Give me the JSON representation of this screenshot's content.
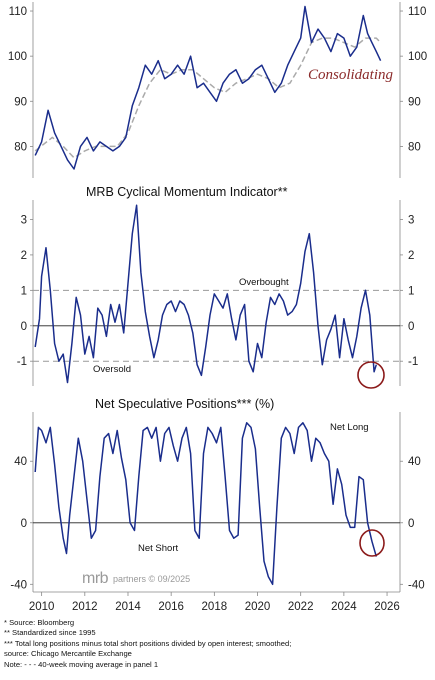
{
  "chart_data": [
    {
      "type": "line",
      "title": "",
      "yticks": [
        80,
        90,
        100,
        110
      ],
      "ylim": [
        73,
        112
      ],
      "xlim": [
        2009.6,
        2026.6
      ],
      "annotation": "Consolidating",
      "series": [
        {
          "role": "main",
          "color": "#1a2d8c",
          "x": [
            2009.7,
            2010.0,
            2010.3,
            2010.6,
            2010.9,
            2011.2,
            2011.5,
            2011.8,
            2012.1,
            2012.4,
            2012.7,
            2013.0,
            2013.3,
            2013.6,
            2013.9,
            2014.2,
            2014.5,
            2014.8,
            2015.1,
            2015.4,
            2015.7,
            2016.0,
            2016.3,
            2016.6,
            2016.9,
            2017.2,
            2017.5,
            2017.8,
            2018.1,
            2018.4,
            2018.7,
            2019.0,
            2019.3,
            2019.6,
            2019.9,
            2020.2,
            2020.5,
            2020.8,
            2021.1,
            2021.4,
            2021.7,
            2022.0,
            2022.2,
            2022.5,
            2022.8,
            2023.1,
            2023.4,
            2023.7,
            2024.0,
            2024.3,
            2024.6,
            2024.9,
            2025.1,
            2025.3,
            2025.5,
            2025.7
          ],
          "y": [
            78,
            81,
            88,
            83,
            80,
            77,
            75,
            80,
            82,
            79,
            81,
            80,
            79,
            80,
            82,
            89,
            93,
            98,
            96,
            99,
            95,
            96,
            98,
            96,
            100,
            93,
            94,
            92,
            90,
            94,
            96,
            97,
            94,
            95,
            97,
            98,
            95,
            92,
            94,
            98,
            101,
            104,
            111,
            103,
            106,
            104,
            101,
            105,
            104,
            100,
            102,
            109,
            105,
            103,
            101,
            99
          ]
        },
        {
          "role": "40-week moving average",
          "color": "#aaaaaa",
          "x": [
            2009.7,
            2010.5,
            2011.0,
            2011.5,
            2012.0,
            2012.5,
            2013.0,
            2013.5,
            2014.0,
            2014.5,
            2015.0,
            2015.5,
            2016.0,
            2016.5,
            2017.0,
            2017.5,
            2018.0,
            2018.5,
            2019.0,
            2019.5,
            2020.0,
            2020.5,
            2021.0,
            2021.5,
            2022.0,
            2022.5,
            2023.0,
            2023.5,
            2024.0,
            2024.5,
            2025.0,
            2025.5,
            2025.7
          ],
          "y": [
            79,
            82,
            80,
            77.5,
            79,
            80,
            80,
            80,
            83,
            89,
            94,
            97,
            96,
            97,
            97,
            95,
            93,
            92,
            94,
            95,
            96,
            95,
            93,
            94,
            98,
            103,
            104,
            104,
            103,
            102,
            104,
            104,
            103
          ]
        }
      ]
    },
    {
      "type": "line",
      "title": "MRB Cyclical Momentum Indicator**",
      "yticks": [
        -1,
        0,
        1,
        2,
        3
      ],
      "ylim": [
        -1.7,
        3.55
      ],
      "xlim": [
        2009.6,
        2026.6
      ],
      "reference_lines": [
        {
          "y": 1,
          "label": "Overbought"
        },
        {
          "y": -1,
          "label": "Oversold"
        }
      ],
      "series": [
        {
          "color": "#1a2d8c",
          "x": [
            2009.7,
            2009.9,
            2010.0,
            2010.2,
            2010.4,
            2010.6,
            2010.8,
            2011.0,
            2011.2,
            2011.4,
            2011.6,
            2011.8,
            2012.0,
            2012.2,
            2012.4,
            2012.6,
            2012.8,
            2013.0,
            2013.2,
            2013.4,
            2013.6,
            2013.8,
            2014.0,
            2014.2,
            2014.4,
            2014.6,
            2014.8,
            2015.0,
            2015.2,
            2015.4,
            2015.6,
            2015.8,
            2016.0,
            2016.2,
            2016.4,
            2016.6,
            2016.8,
            2017.0,
            2017.2,
            2017.4,
            2017.6,
            2017.8,
            2018.0,
            2018.2,
            2018.4,
            2018.6,
            2018.8,
            2019.0,
            2019.2,
            2019.4,
            2019.6,
            2019.8,
            2020.0,
            2020.2,
            2020.4,
            2020.6,
            2020.8,
            2021.0,
            2021.2,
            2021.4,
            2021.6,
            2021.8,
            2022.0,
            2022.2,
            2022.4,
            2022.6,
            2022.8,
            2023.0,
            2023.2,
            2023.4,
            2023.6,
            2023.8,
            2024.0,
            2024.2,
            2024.4,
            2024.6,
            2024.8,
            2025.0,
            2025.2,
            2025.4,
            2025.5
          ],
          "y": [
            -0.6,
            0.2,
            1.4,
            2.2,
            1.0,
            -0.5,
            -1.0,
            -0.8,
            -1.6,
            -0.5,
            0.8,
            0.3,
            -0.8,
            -0.3,
            -0.9,
            0.5,
            0.3,
            -0.3,
            0.6,
            0.1,
            0.6,
            -0.2,
            1.2,
            2.6,
            3.4,
            1.5,
            0.4,
            -0.3,
            -0.9,
            -0.4,
            0.3,
            0.6,
            0.7,
            0.4,
            0.7,
            0.6,
            0.3,
            -0.2,
            -1.1,
            -1.4,
            -0.6,
            0.3,
            0.9,
            0.7,
            0.5,
            0.9,
            0.2,
            -0.4,
            0.3,
            0.6,
            -1.0,
            -1.3,
            -0.5,
            -0.9,
            0.1,
            0.8,
            0.6,
            0.9,
            0.7,
            0.3,
            0.4,
            0.6,
            1.2,
            2.1,
            2.6,
            1.5,
            0.0,
            -1.1,
            -0.4,
            -0.1,
            0.3,
            -0.9,
            0.2,
            -0.4,
            -0.9,
            -0.3,
            0.5,
            1.0,
            0.3,
            -1.3,
            -1.1
          ]
        }
      ]
    },
    {
      "type": "line",
      "title": "Net Speculative Positions*** (%)",
      "yticks": [
        -40,
        0,
        40
      ],
      "ylim": [
        -45,
        72
      ],
      "xlim": [
        2009.6,
        2026.6
      ],
      "annotations": [
        "Net Long",
        "Net Short"
      ],
      "xticks": [
        2010,
        2012,
        2014,
        2016,
        2018,
        2020,
        2022,
        2024,
        2026
      ],
      "series": [
        {
          "color": "#1a2d8c",
          "x": [
            2009.7,
            2009.85,
            2010.0,
            2010.2,
            2010.4,
            2010.6,
            2010.8,
            2011.0,
            2011.15,
            2011.3,
            2011.5,
            2011.7,
            2011.9,
            2012.1,
            2012.3,
            2012.5,
            2012.7,
            2012.9,
            2013.1,
            2013.3,
            2013.5,
            2013.7,
            2013.9,
            2014.1,
            2014.3,
            2014.5,
            2014.7,
            2014.9,
            2015.1,
            2015.3,
            2015.5,
            2015.7,
            2015.9,
            2016.1,
            2016.3,
            2016.5,
            2016.7,
            2016.9,
            2017.1,
            2017.3,
            2017.5,
            2017.7,
            2017.9,
            2018.1,
            2018.3,
            2018.5,
            2018.7,
            2018.9,
            2019.1,
            2019.3,
            2019.5,
            2019.7,
            2019.9,
            2020.1,
            2020.3,
            2020.5,
            2020.7,
            2020.9,
            2021.1,
            2021.3,
            2021.5,
            2021.7,
            2021.9,
            2022.1,
            2022.3,
            2022.5,
            2022.7,
            2022.9,
            2023.1,
            2023.3,
            2023.5,
            2023.7,
            2023.9,
            2024.1,
            2024.3,
            2024.5,
            2024.7,
            2024.9,
            2025.1,
            2025.3,
            2025.5
          ],
          "y": [
            33,
            62,
            60,
            52,
            62,
            38,
            10,
            -10,
            -20,
            5,
            30,
            55,
            40,
            15,
            -10,
            -5,
            30,
            55,
            58,
            45,
            60,
            42,
            28,
            0,
            -5,
            30,
            60,
            62,
            55,
            62,
            40,
            58,
            62,
            50,
            40,
            55,
            62,
            45,
            -5,
            -10,
            45,
            62,
            58,
            52,
            62,
            30,
            -5,
            -10,
            -8,
            55,
            65,
            62,
            48,
            10,
            -25,
            -35,
            -40,
            10,
            55,
            62,
            58,
            45,
            62,
            65,
            60,
            40,
            55,
            52,
            45,
            40,
            12,
            35,
            25,
            5,
            -3,
            -3,
            30,
            28,
            0,
            -12,
            -22
          ]
        }
      ]
    }
  ],
  "source": {
    "brand": "mrb",
    "brand_suffix": "partners © 09/2025"
  },
  "footnotes": [
    "*   Source: Bloomberg",
    "**  Standardized since 1995",
    "*** Total long positions minus total short positions divided by open interest; smoothed;",
    "       source: Chicago Mercantile Exchange",
    "Note: - - - 40-week moving average in panel 1"
  ],
  "colors": {
    "line": "#1a2d8c",
    "moving_average": "#aaaaaa",
    "highlight_circle": "#8b1a1a",
    "annotation_text": "#8b2a2a"
  }
}
